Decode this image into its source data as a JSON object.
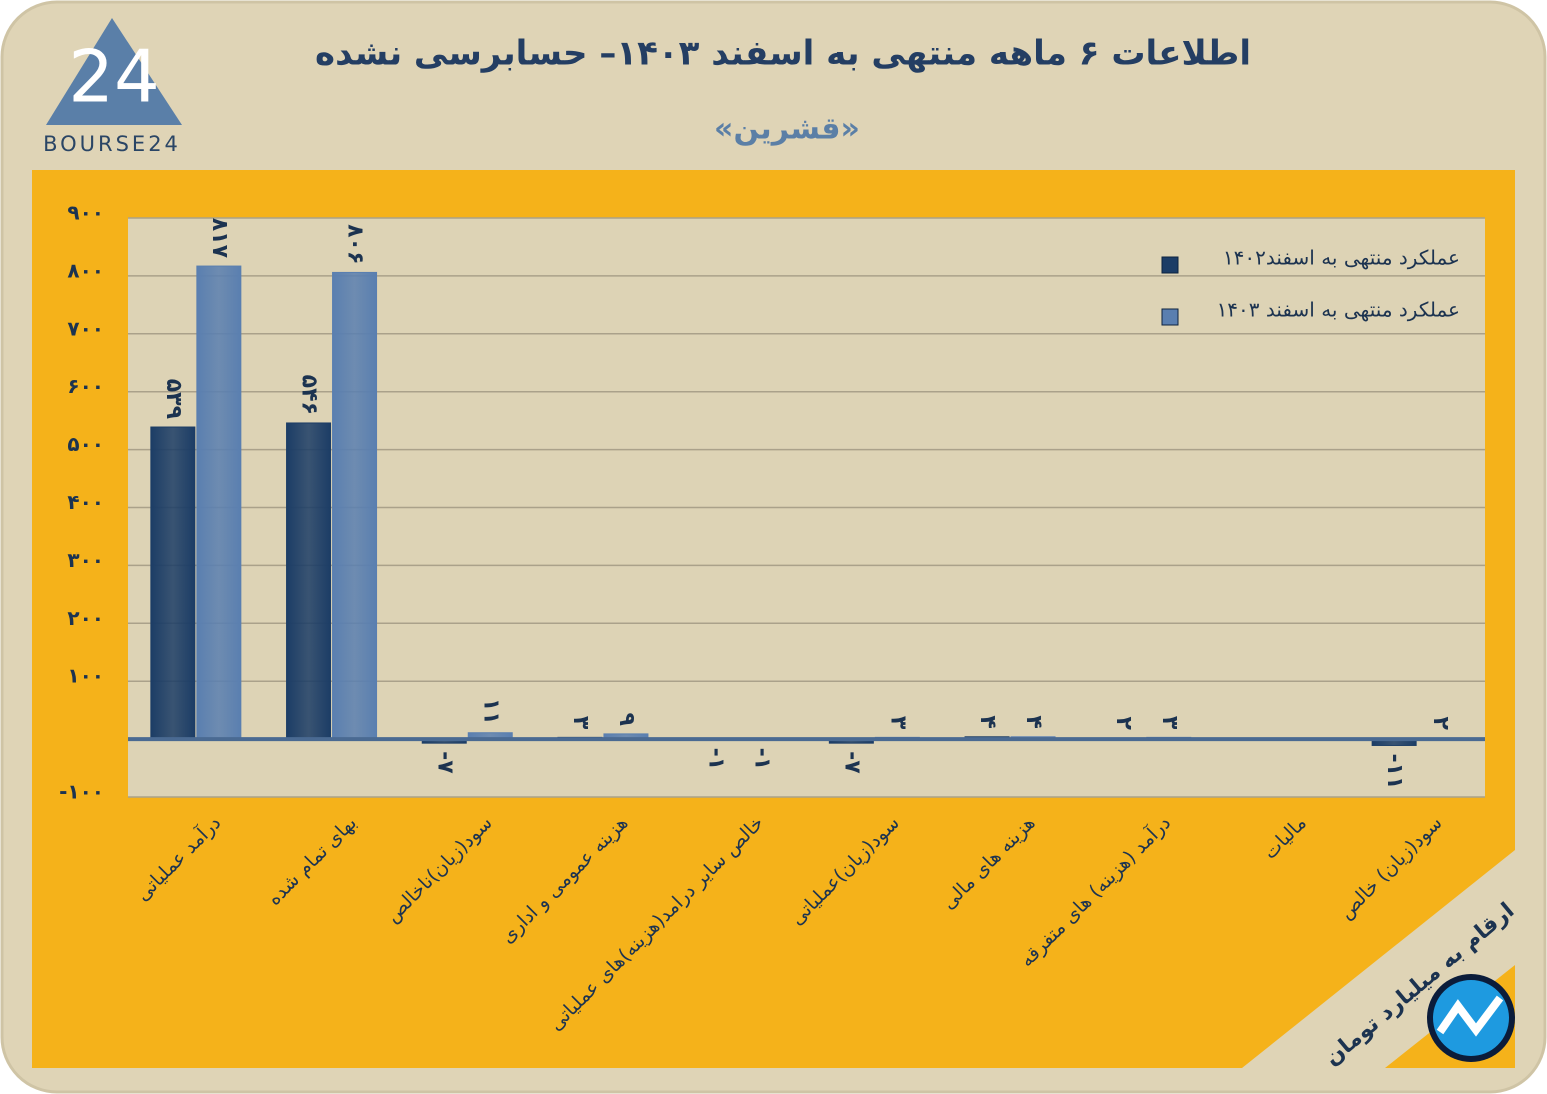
{
  "chart_data": {
    "type": "bar",
    "title": "اطلاعات ۶ ماهه منتهی به اسفند ۱۴۰۳– حسابرسی نشده",
    "subtitle": "«قشرین»",
    "logo_mark": "24",
    "logo_text": "BOURSE24",
    "unit_note": "ارقام به میلیارد تومان",
    "categories": [
      "درآمد عملیاتی",
      "بهای تمام شده",
      "سود(زیان)ناخالص",
      "هزینه عمومی و اداری",
      "خالص سایر درامد(هزینه)های عملیاتی",
      "سود(زیان)عملیاتی",
      "هزینه های مالی",
      "درآمد (هزینه) های متفرقه",
      "مالیات",
      "سود(زیان) خالص"
    ],
    "series": [
      {
        "name": "عملکرد منتهی به اسفند۱۴۰۲",
        "color": "#1c3d66",
        "values": [
          539,
          546,
          -7,
          3,
          -1,
          -7,
          4,
          2,
          null,
          -11
        ],
        "value_labels": [
          "۵۳۹",
          "۵۴۶",
          "-۷",
          "۳",
          "-۱",
          "-۷",
          "۴",
          "۲",
          null,
          "-۱۱"
        ]
      },
      {
        "name": "عملکرد منتهی به اسفند ۱۴۰۳",
        "color": "#5a7fb0",
        "values": [
          817,
          806,
          11,
          9,
          -1,
          3,
          4,
          3,
          null,
          2
        ],
        "value_labels": [
          "۸۱۷",
          "۸۰۶",
          "۱۱",
          "۹",
          "-۱",
          "۳",
          "۴",
          "۳",
          null,
          "۲"
        ]
      }
    ],
    "ylim": [
      -100,
      900
    ],
    "yticks": [
      {
        "value": -100,
        "label": "-۱۰۰"
      },
      {
        "value": 100,
        "label": "۱۰۰"
      },
      {
        "value": 200,
        "label": "۲۰۰"
      },
      {
        "value": 300,
        "label": "۳۰۰"
      },
      {
        "value": 400,
        "label": "۴۰۰"
      },
      {
        "value": 500,
        "label": "۵۰۰"
      },
      {
        "value": 600,
        "label": "۶۰۰"
      },
      {
        "value": 700,
        "label": "۷۰۰"
      },
      {
        "value": 800,
        "label": "۸۰۰"
      },
      {
        "value": 900,
        "label": "۹۰۰"
      }
    ],
    "grid": true,
    "legend": "top-right"
  }
}
